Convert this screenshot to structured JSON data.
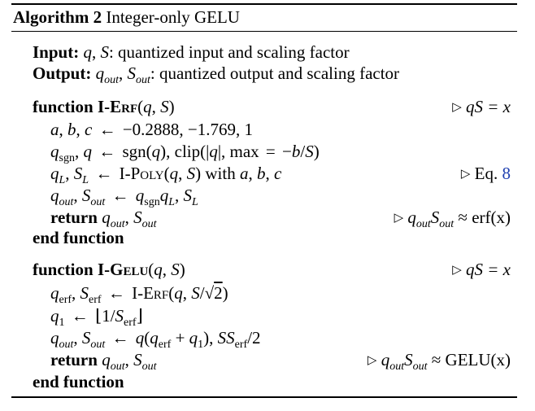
{
  "caption": {
    "label": "Algorithm 2",
    "title": "Integer-only GELU"
  },
  "input": {
    "label": "Input:",
    "text": ": quantized input and scaling factor"
  },
  "output": {
    "label": "Output:",
    "text": ": quantized output and scaling factor"
  },
  "erf": {
    "keyword": "function",
    "name_prefix": "I-",
    "name_sc": "Erf",
    "comment": "qS = x",
    "constants": "−0.2888, −1.769, 1",
    "poly_prefix": "I-",
    "poly_sc": "Poly",
    "with_text": "with",
    "eq_ref_label": "Eq.",
    "eq_ref_num": "8",
    "return_kw": "return",
    "return_comment": "≈ erf(x)",
    "end_kw": "end function"
  },
  "gelu": {
    "keyword": "function",
    "name_prefix": "I-",
    "name_sc": "Gelu",
    "comment": "qS = x",
    "return_kw": "return",
    "return_comment": "≈ GELU(x)",
    "end_kw": "end function"
  },
  "colors": {
    "rule": "#000000",
    "eq_link": "#1f3fb0"
  }
}
